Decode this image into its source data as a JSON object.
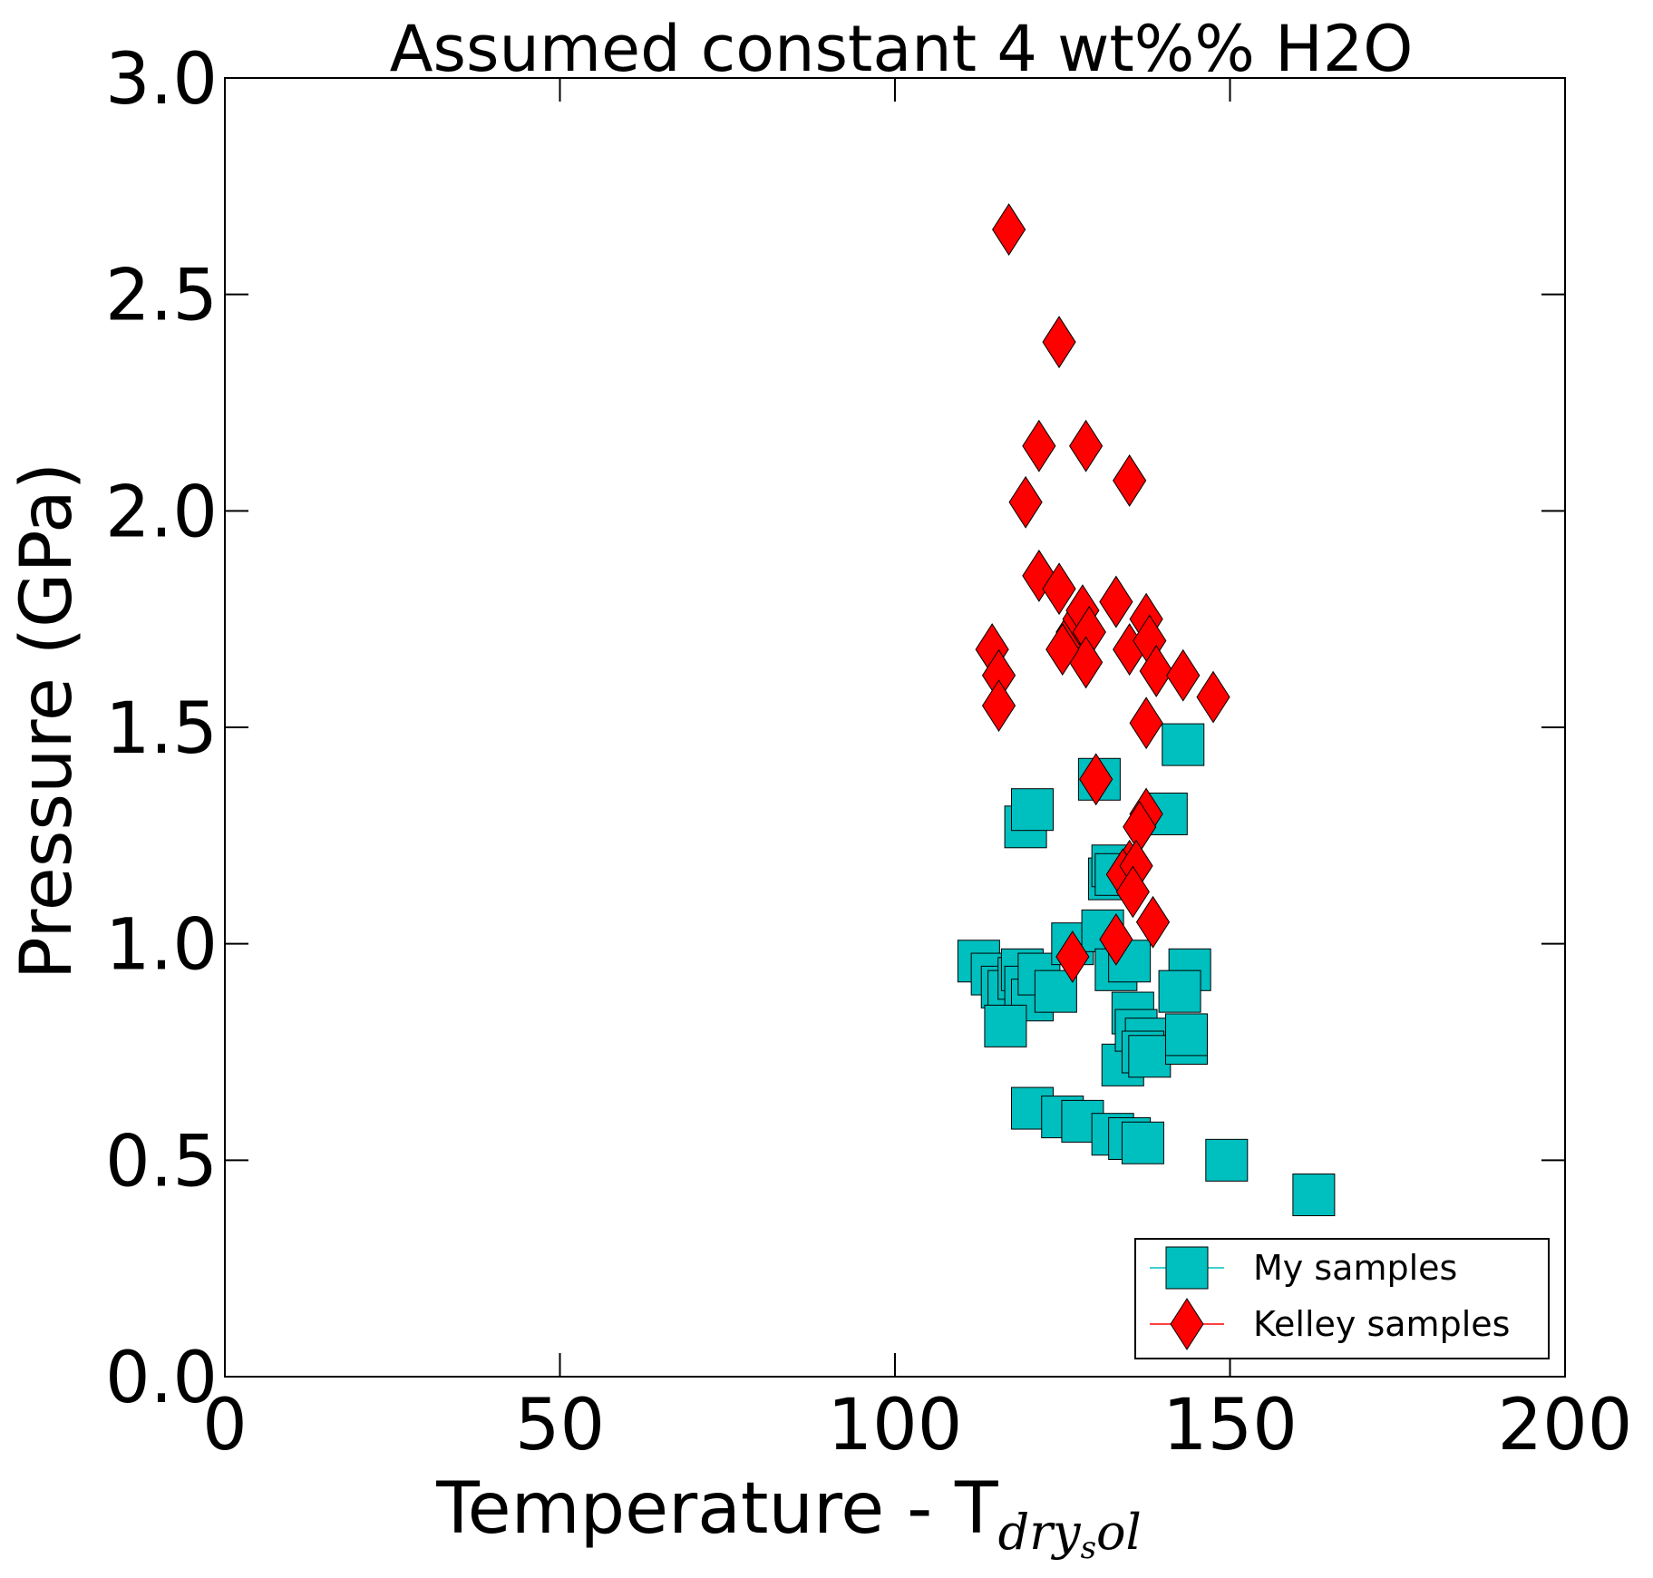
{
  "chart_data": {
    "type": "scatter",
    "title": "Assumed constant 4 wt%% H2O",
    "xlabel": "Temperature - T",
    "xlabel_subscript_main": "dry",
    "xlabel_subscript_sub": "s",
    "xlabel_subscript_tail": "ol",
    "ylabel": "Pressure (GPa)",
    "xlim": [
      0,
      200
    ],
    "ylim": [
      0.0,
      3.0
    ],
    "x_ticks": [
      0,
      50,
      100,
      150,
      200
    ],
    "x_tick_labels": [
      "0",
      "50",
      "100",
      "150",
      "200"
    ],
    "y_ticks": [
      0.0,
      0.5,
      1.0,
      1.5,
      2.0,
      2.5,
      3.0
    ],
    "y_tick_labels": [
      "0.0",
      "0.5",
      "1.0",
      "1.5",
      "2.0",
      "2.5",
      "3.0"
    ],
    "grid": false,
    "legend_position": "lower-right",
    "series": [
      {
        "name": "My samples",
        "marker": "square",
        "color": "#00bfbf",
        "x": [
          112.5,
          114.5,
          116,
          117,
          118.5,
          119,
          119.5,
          120.5,
          121.5,
          124,
          116.5,
          119.5,
          120.5,
          126.5,
          130.5,
          131,
          132,
          132.5,
          133,
          133,
          134,
          135.5,
          135,
          136,
          137.5,
          137,
          138,
          140.5,
          143,
          143.5,
          143.5,
          144,
          142.5,
          120.5,
          125,
          128,
          132.5,
          135,
          137,
          149.5,
          162.5
        ],
        "y": [
          0.96,
          0.93,
          0.9,
          0.89,
          0.92,
          0.94,
          0.9,
          0.87,
          0.93,
          0.89,
          0.81,
          1.27,
          1.31,
          1.0,
          1.38,
          1.03,
          1.15,
          1.18,
          1.16,
          0.94,
          0.72,
          0.84,
          0.96,
          0.8,
          0.78,
          0.75,
          0.74,
          1.3,
          1.46,
          0.77,
          0.79,
          0.94,
          0.89,
          0.62,
          0.6,
          0.59,
          0.56,
          0.55,
          0.54,
          0.5,
          0.42
        ]
      },
      {
        "name": "Kelley samples",
        "marker": "diamond",
        "color": "#ff0000",
        "x": [
          117,
          124.5,
          121.5,
          128.5,
          135,
          119.5,
          121.5,
          124.5,
          114.5,
          115.5,
          115.5,
          126.5,
          127.5,
          128,
          129,
          128.5,
          125,
          133,
          135,
          137.5,
          138,
          137.5,
          139,
          143,
          147.5,
          137.5,
          130,
          136.5,
          135,
          134,
          136,
          135.5,
          138.5,
          133,
          126.5
        ],
        "y": [
          2.65,
          2.39,
          2.15,
          2.15,
          2.07,
          2.02,
          1.85,
          1.82,
          1.68,
          1.62,
          1.55,
          1.72,
          1.75,
          1.77,
          1.72,
          1.65,
          1.68,
          1.79,
          1.68,
          1.75,
          1.7,
          1.51,
          1.63,
          1.62,
          1.57,
          1.3,
          1.38,
          1.27,
          1.18,
          1.16,
          1.18,
          1.12,
          1.05,
          1.01,
          0.97
        ]
      }
    ]
  }
}
